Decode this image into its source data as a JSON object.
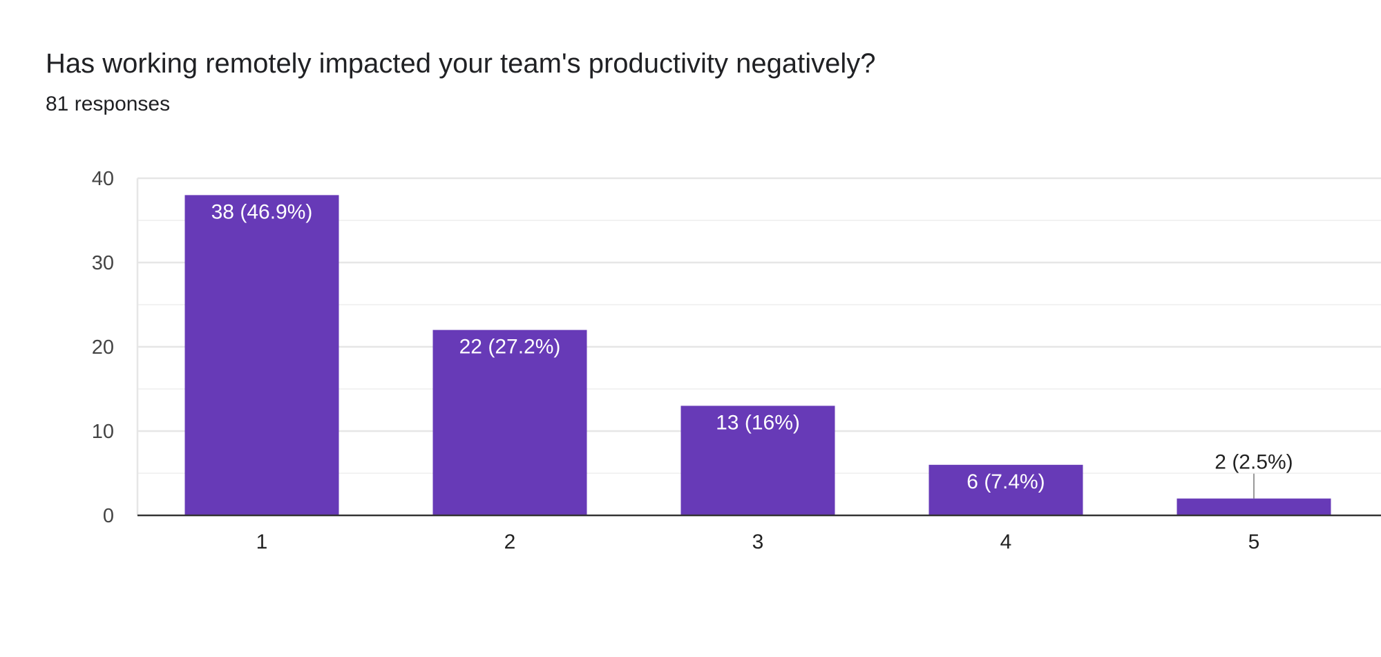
{
  "title": "Has working remotely impacted your team's productivity negatively?",
  "subtitle": "81 responses",
  "colors": {
    "bar": "#673ab7",
    "grid": "#e6e6e6",
    "minor_grid": "#f2f2f2",
    "axis": "#333333"
  },
  "chart_data": {
    "type": "bar",
    "categories": [
      "1",
      "2",
      "3",
      "4",
      "5"
    ],
    "values": [
      38,
      22,
      13,
      6,
      2
    ],
    "data_labels": [
      "38 (46.9%)",
      "22 (27.2%)",
      "13 (16%)",
      "6 (7.4%)",
      "2 (2.5%)"
    ],
    "yticks": [
      0,
      10,
      20,
      30,
      40
    ],
    "ylim": [
      0,
      40
    ],
    "grid": true
  }
}
